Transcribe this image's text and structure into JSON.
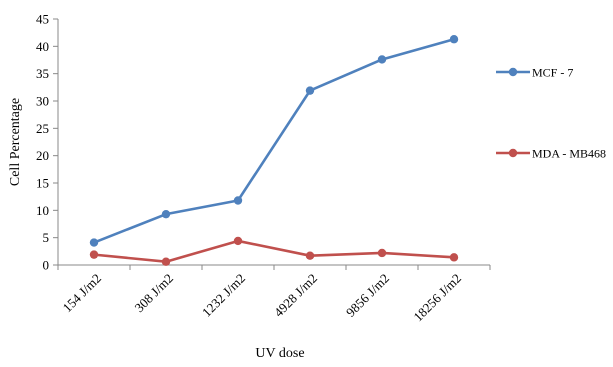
{
  "chart_data": {
    "type": "line",
    "title": "",
    "xlabel": "UV dose",
    "ylabel": "Cell Percentage",
    "categories": [
      "154 J/m2",
      "308 J/m2",
      "1232 J/m2",
      "4928 J/m2",
      "9856 J/m2",
      "18256 J/m2"
    ],
    "ylim": [
      0,
      45
    ],
    "yticks": [
      "0",
      "5",
      "10",
      "15",
      "20",
      "25",
      "30",
      "35",
      "40",
      "45"
    ],
    "grid": false,
    "legend_position": "right",
    "series": [
      {
        "name": "MCF - 7",
        "color": "#4F81BD",
        "values": [
          4.1,
          9.3,
          11.8,
          31.9,
          37.6,
          41.3
        ]
      },
      {
        "name": "MDA - MB468",
        "color": "#C0504D",
        "values": [
          1.9,
          0.6,
          4.4,
          1.7,
          2.2,
          1.4
        ]
      }
    ]
  }
}
